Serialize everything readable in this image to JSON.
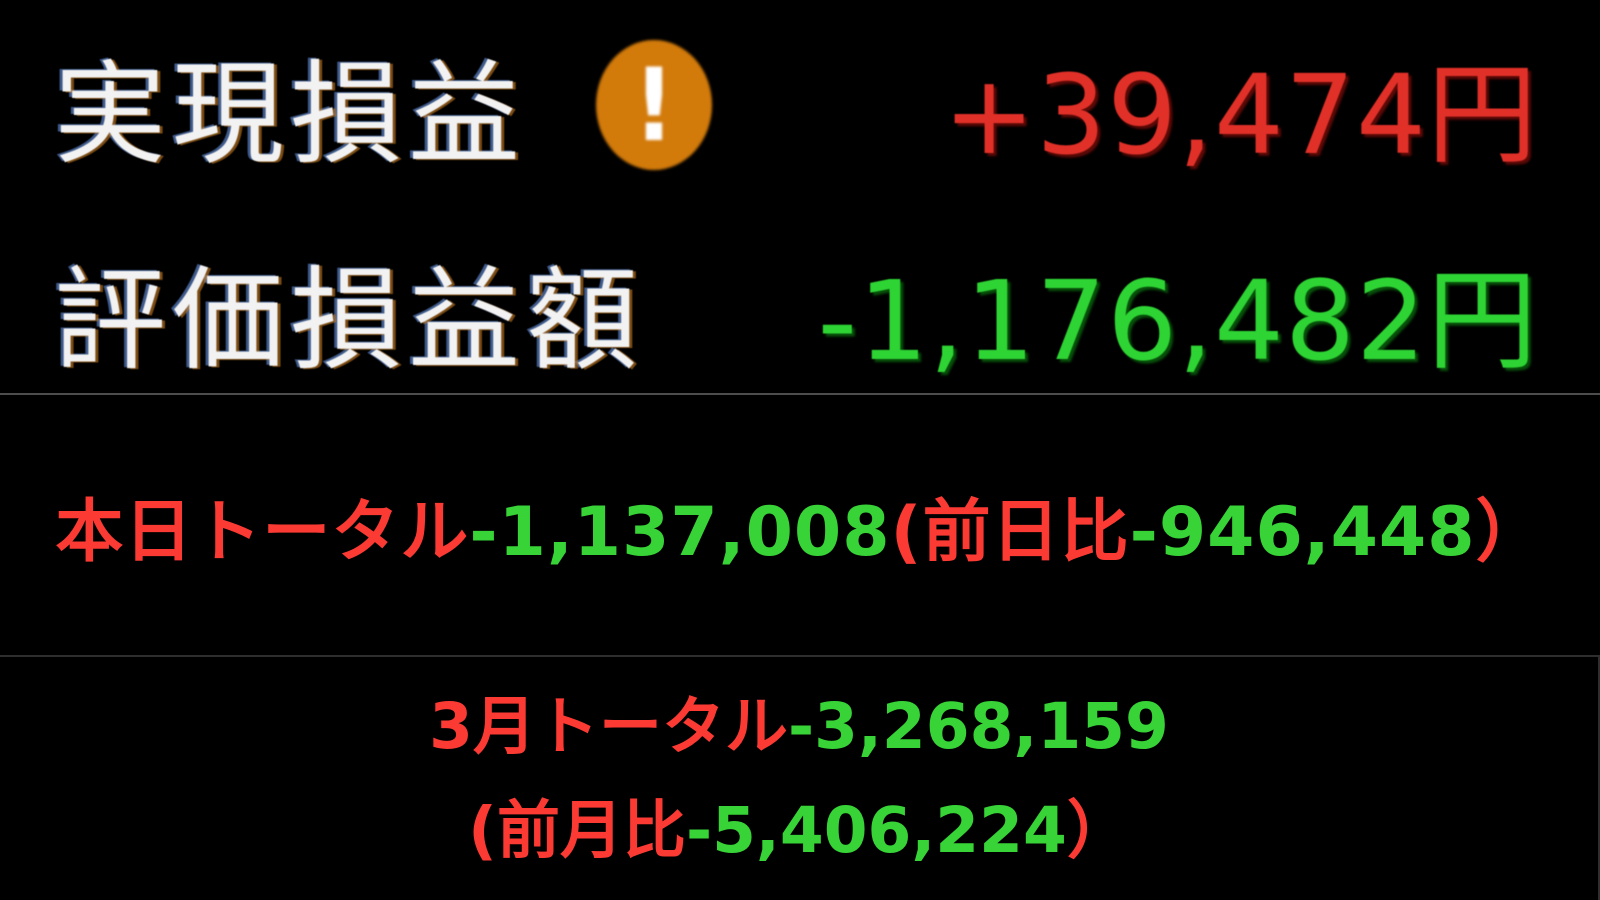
{
  "colors": {
    "background": "#000000",
    "top_label": "#f2f2f2",
    "top_value_red": "#e03028",
    "top_value_green": "#2ed434",
    "bottom_red": "#fb3a34",
    "bottom_green": "#37d337",
    "warning_orange": "#d27a0a",
    "divider_top": "#4d4d4d",
    "divider_bottom": "#2e2e2e"
  },
  "realized_row": {
    "label": "実現損益",
    "warning_icon": "exclamation-circle-icon",
    "warning_glyph": "!",
    "value": "+39,474円"
  },
  "unrealized_row": {
    "label": "評価損益額",
    "value": "-1,176,482円"
  },
  "today_line": {
    "segments": [
      {
        "text": "本日トータル",
        "color": "red"
      },
      {
        "text": "-1,137,008",
        "color": "green"
      },
      {
        "text": "(前日比",
        "color": "red"
      },
      {
        "text": "-946,448",
        "color": "green"
      },
      {
        "text": "）",
        "color": "red"
      }
    ]
  },
  "month_lines": {
    "line1": {
      "segments": [
        {
          "text": "3月トータル",
          "color": "red"
        },
        {
          "text": "-3,268,159",
          "color": "green"
        }
      ]
    },
    "line2": {
      "segments": [
        {
          "text": "(前月比",
          "color": "red"
        },
        {
          "text": "-5,406,224",
          "color": "green"
        },
        {
          "text": "）",
          "color": "red"
        }
      ]
    }
  }
}
